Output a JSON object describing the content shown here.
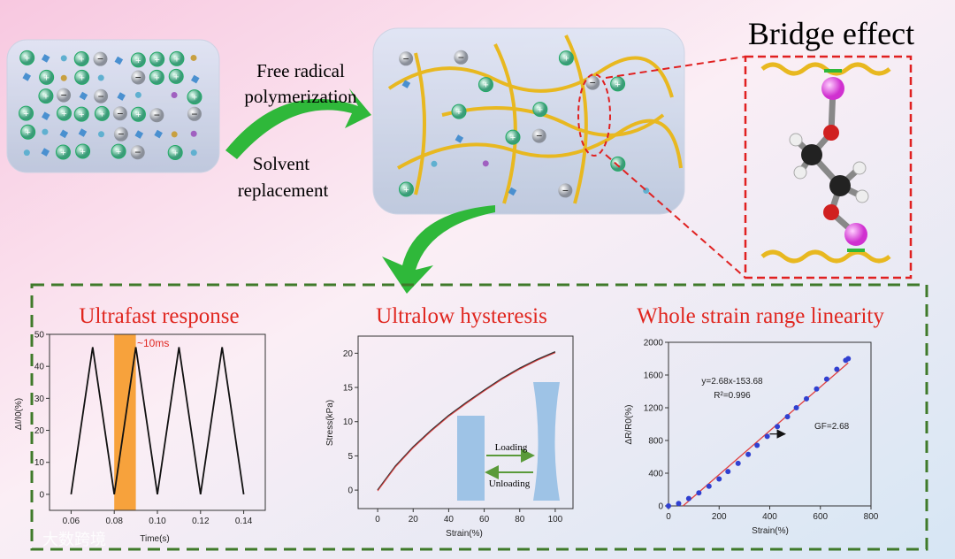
{
  "top": {
    "step1_line1": "Free radical",
    "step1_line2": "polymerization",
    "step2_line1": "Solvent",
    "step2_line2": "replacement",
    "bridge_title": "Bridge effect"
  },
  "colors": {
    "title_red": "#e0261f",
    "frame_green": "#3f7a2a",
    "arrow_green": "#2fb83a",
    "bridge_red": "#e02020",
    "fiber_yellow": "#e8b820",
    "magenta": "#e040e0"
  },
  "watermark": "大数跨境",
  "chart_data": [
    {
      "type": "line",
      "title": "Ultrafast response",
      "xlabel": "Time(s)",
      "ylabel": "ΔI/I0(%)",
      "x": [
        0.06,
        0.07,
        0.08,
        0.09,
        0.1,
        0.11,
        0.12,
        0.13,
        0.14
      ],
      "y": [
        0,
        46,
        0,
        46,
        0,
        46,
        0,
        46,
        0
      ],
      "xlim": [
        0.05,
        0.15
      ],
      "ylim": [
        -5,
        50
      ],
      "xticks": [
        "0.06",
        "0.08",
        "0.10",
        "0.12",
        "0.14"
      ],
      "yticks": [
        "0",
        "10",
        "20",
        "30",
        "40",
        "50"
      ],
      "highlight": {
        "from": 0.08,
        "to": 0.09,
        "label": "~10ms",
        "color": "#f7a23c"
      }
    },
    {
      "type": "line",
      "title": "Ultralow hysteresis",
      "xlabel": "Strain(%)",
      "ylabel": "Stress(kPa)",
      "x": [
        0,
        10,
        20,
        30,
        40,
        50,
        60,
        70,
        80,
        90,
        100
      ],
      "y": [
        0,
        3.5,
        6.3,
        8.7,
        10.9,
        12.8,
        14.6,
        16.3,
        17.8,
        19.1,
        20.2
      ],
      "xlim": [
        -11,
        110
      ],
      "ylim": [
        -2.7,
        22.5
      ],
      "xticks": [
        "0",
        "20",
        "40",
        "60",
        "80",
        "100"
      ],
      "yticks": [
        "0",
        "5",
        "10",
        "15",
        "20"
      ],
      "inset": {
        "loading": "Loading",
        "unloading": "Unloading"
      }
    },
    {
      "type": "scatter",
      "title": "Whole strain range linearity",
      "xlabel": "Strain(%)",
      "ylabel": "ΔR/R0(%)",
      "x": [
        0,
        40,
        80,
        120,
        160,
        200,
        235,
        275,
        315,
        350,
        390,
        430,
        470,
        505,
        545,
        585,
        625,
        665,
        700,
        710
      ],
      "y": [
        0,
        30,
        90,
        160,
        240,
        330,
        420,
        520,
        630,
        740,
        850,
        970,
        1090,
        1200,
        1310,
        1430,
        1550,
        1670,
        1780,
        1800
      ],
      "fit": {
        "slope": 2.68,
        "intercept": -153.68,
        "equation": "y=2.68x-153.68",
        "r2_label": "R²=0.996"
      },
      "annotation": "GF=2.68",
      "xlim": [
        0,
        800
      ],
      "ylim": [
        0,
        2000
      ],
      "xticks": [
        "0",
        "200",
        "400",
        "600",
        "800"
      ],
      "yticks": [
        "0",
        "400",
        "800",
        "1200",
        "1600",
        "2000"
      ]
    }
  ]
}
